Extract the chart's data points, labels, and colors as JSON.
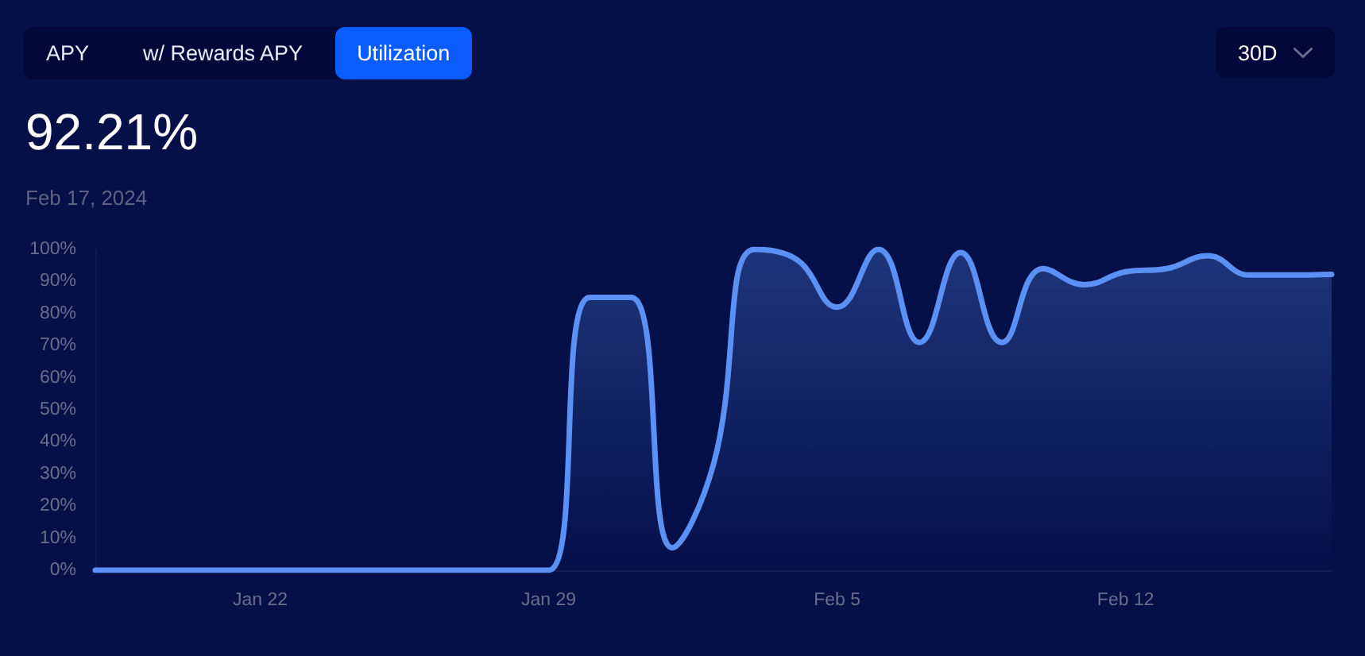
{
  "chart_data": {
    "type": "area",
    "title": "92.21%",
    "subtitle": "Feb 17, 2024",
    "annotations": [
      "APY",
      "w/ Rewards APY",
      "Utilization",
      "30D"
    ],
    "x": [
      "2024-01-18",
      "2024-01-19",
      "2024-01-20",
      "2024-01-21",
      "2024-01-22",
      "2024-01-23",
      "2024-01-24",
      "2024-01-25",
      "2024-01-26",
      "2024-01-27",
      "2024-01-28",
      "2024-01-29",
      "2024-01-30",
      "2024-01-31",
      "2024-02-01",
      "2024-02-02",
      "2024-02-03",
      "2024-02-04",
      "2024-02-05",
      "2024-02-06",
      "2024-02-07",
      "2024-02-08",
      "2024-02-09",
      "2024-02-10",
      "2024-02-11",
      "2024-02-12",
      "2024-02-13",
      "2024-02-14",
      "2024-02-15",
      "2024-02-16",
      "2024-02-17"
    ],
    "values": [
      0,
      0,
      0,
      0,
      0,
      0,
      0,
      0,
      0,
      0,
      0,
      0,
      85,
      85,
      7,
      33,
      100,
      97,
      82,
      100,
      71,
      99,
      71,
      94,
      89,
      93,
      94,
      98,
      92,
      92,
      92.21
    ],
    "color": "#5b90f5",
    "xlim": [
      "2024-01-18",
      "2024-02-17"
    ],
    "xticks": [
      {
        "value": "2024-01-22",
        "label": "Jan 22"
      },
      {
        "value": "2024-01-29",
        "label": "Jan 29"
      },
      {
        "value": "2024-02-05",
        "label": "Feb 5"
      },
      {
        "value": "2024-02-12",
        "label": "Feb 12"
      }
    ],
    "ylim": [
      0,
      100
    ],
    "yticks": [
      {
        "value": 0,
        "label": "0%"
      },
      {
        "value": 10,
        "label": "10%"
      },
      {
        "value": 20,
        "label": "20%"
      },
      {
        "value": 30,
        "label": "30%"
      },
      {
        "value": 40,
        "label": "40%"
      },
      {
        "value": 50,
        "label": "50%"
      },
      {
        "value": 60,
        "label": "60%"
      },
      {
        "value": 70,
        "label": "70%"
      },
      {
        "value": 80,
        "label": "80%"
      },
      {
        "value": 90,
        "label": "90%"
      },
      {
        "value": 100,
        "label": "100%"
      }
    ],
    "marker": "none",
    "line_style": "solid"
  }
}
